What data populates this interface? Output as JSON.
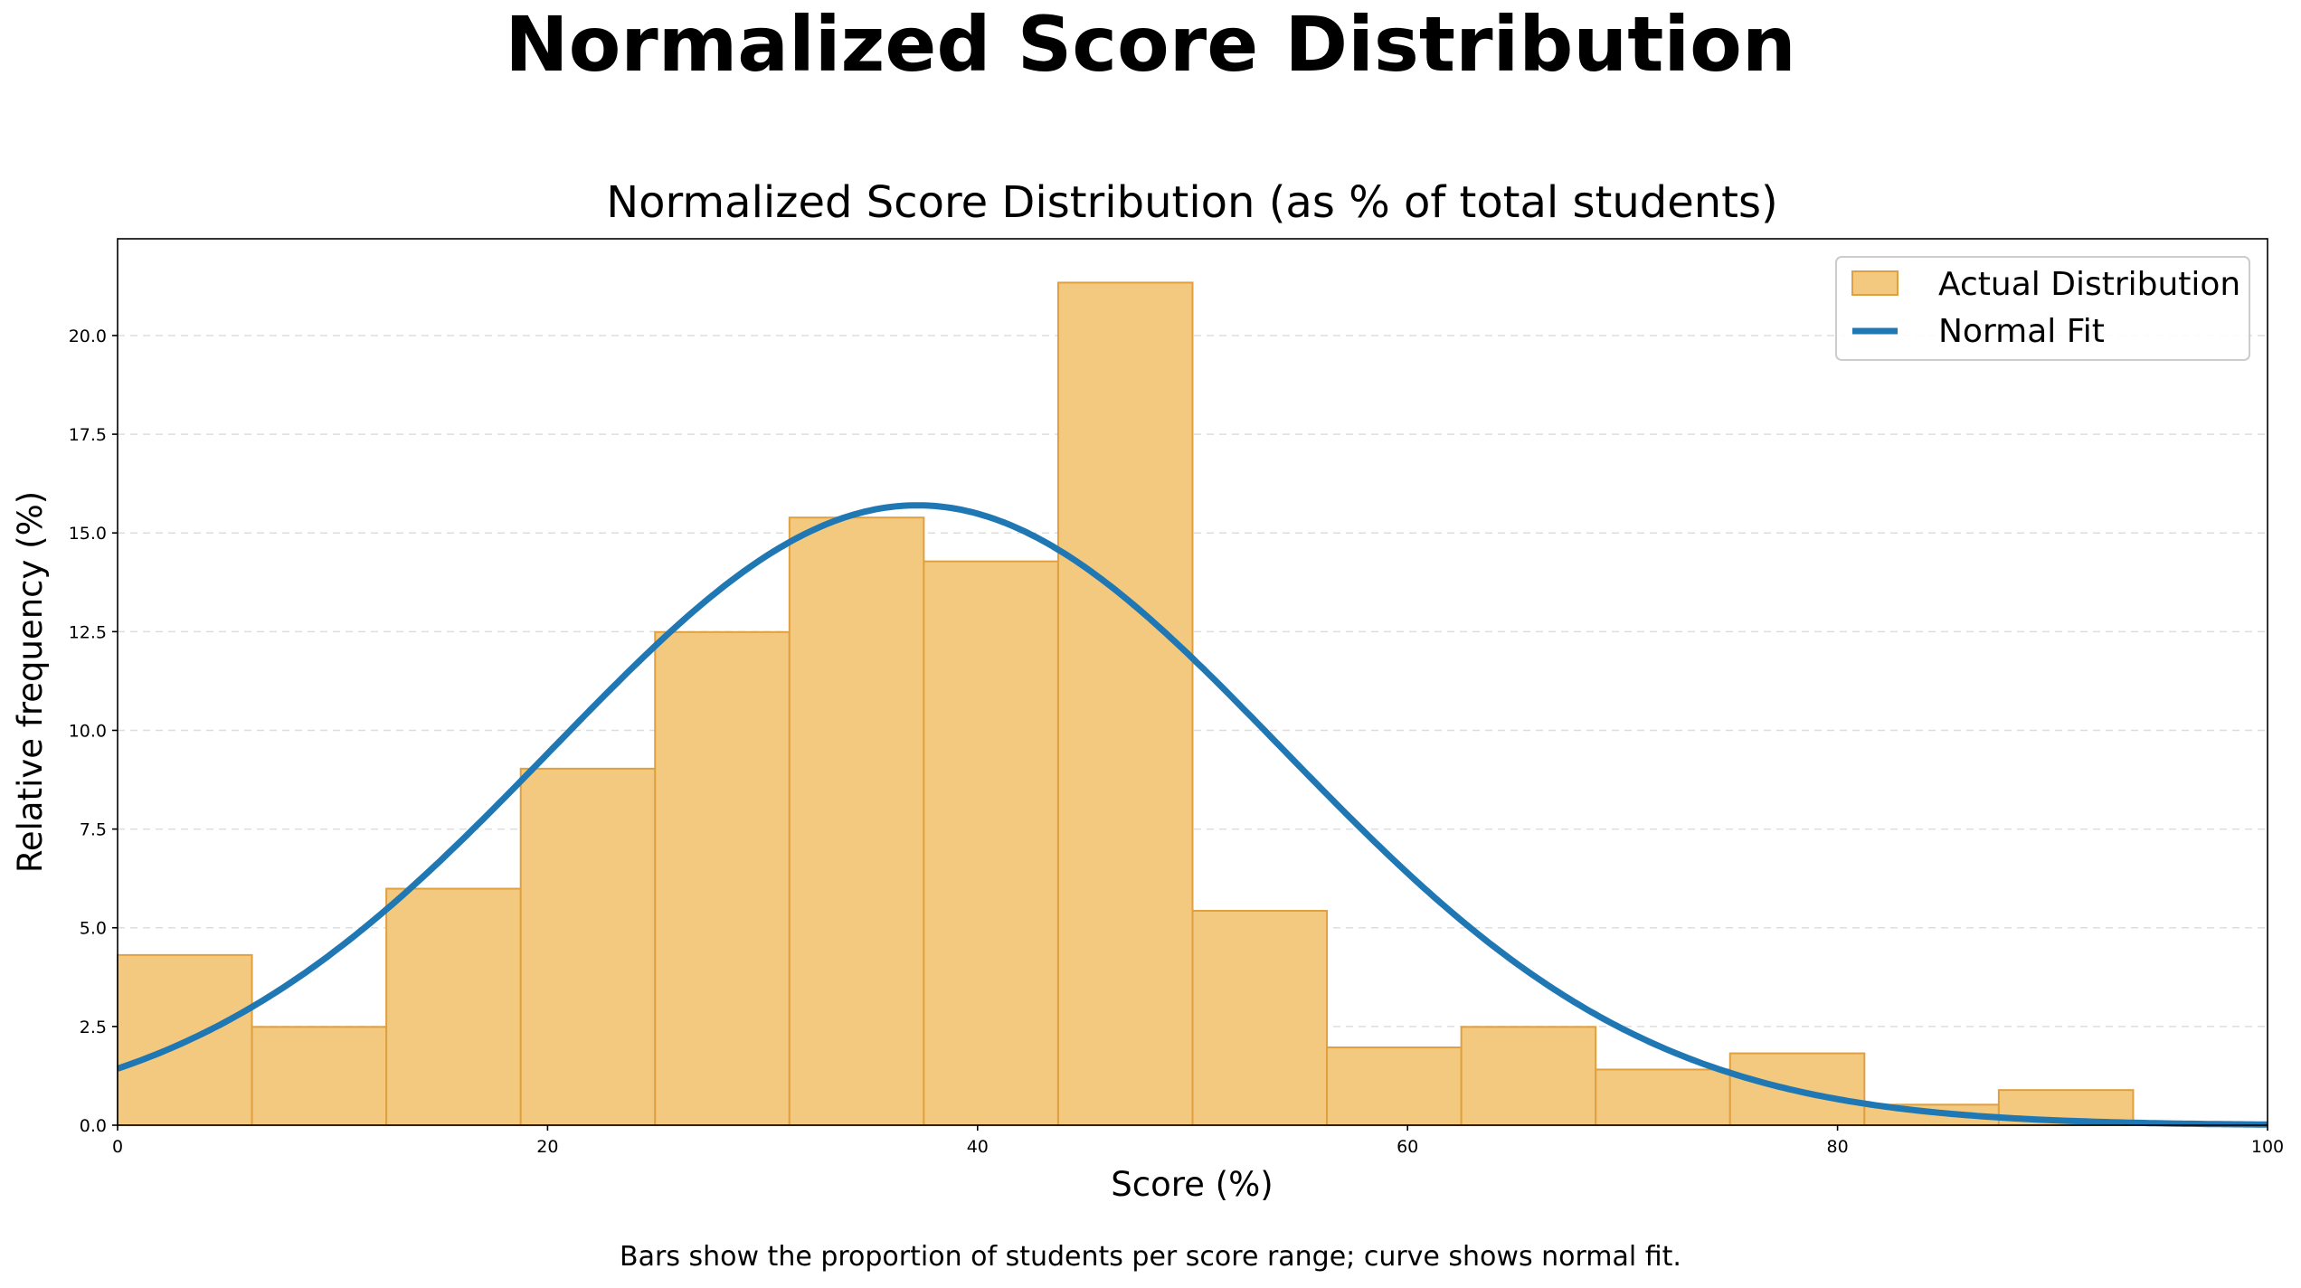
{
  "chart_data": {
    "type": "bar",
    "title": "Normalized Score Distribution",
    "subtitle": "Normalized Score Distribution (as % of total students)",
    "xlabel": "Score (%)",
    "ylabel": "Relative frequency (%)",
    "caption": "Bars show the proportion of students per score range; curve shows normal fit.",
    "xlim": [
      0,
      100
    ],
    "ylim": [
      0,
      22.45
    ],
    "xticks": [
      0,
      20,
      40,
      60,
      80,
      100
    ],
    "yticks": [
      "0.0",
      "2.5",
      "5.0",
      "7.5",
      "10.0",
      "12.5",
      "15.0",
      "17.5",
      "20.0"
    ],
    "grid": "y-dashed",
    "legend_placement": "top-right",
    "bin_edges": [
      0,
      6.25,
      12.5,
      18.75,
      25,
      31.25,
      37.5,
      43.75,
      50,
      56.25,
      62.5,
      68.75,
      75,
      81.25,
      87.5,
      93.75,
      100
    ],
    "series": [
      {
        "name": "Actual Distribution",
        "kind": "histogram",
        "color": "#f2c97e",
        "edge_color": "#e0a040",
        "values": [
          4.31,
          2.49,
          5.99,
          9.03,
          12.49,
          15.39,
          14.28,
          21.34,
          5.43,
          1.97,
          2.49,
          1.41,
          1.82,
          0.52,
          0.89,
          0
        ]
      },
      {
        "name": "Normal Fit",
        "kind": "line",
        "color": "#1f77b4",
        "mean": 37.2,
        "std": 17.0,
        "peak": 15.7
      }
    ]
  }
}
